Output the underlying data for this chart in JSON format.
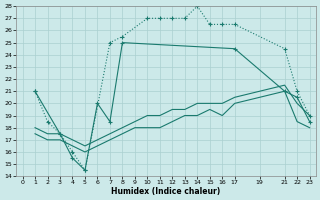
{
  "xlabel": "Humidex (Indice chaleur)",
  "bg_color": "#cce9e9",
  "grid_color": "#aad0d0",
  "line_color": "#1a7a6e",
  "ylim": [
    14,
    28
  ],
  "xlim": [
    -0.5,
    23.5
  ],
  "yticks": [
    14,
    15,
    16,
    17,
    18,
    19,
    20,
    21,
    22,
    23,
    24,
    25,
    26,
    27,
    28
  ],
  "xticks": [
    0,
    1,
    2,
    3,
    4,
    5,
    6,
    7,
    8,
    9,
    10,
    11,
    12,
    13,
    14,
    15,
    16,
    17,
    19,
    21,
    22,
    23
  ],
  "xtick_labels": [
    "0",
    "1",
    "2",
    "3",
    "4",
    "5",
    "6",
    "7",
    "8",
    "9",
    "10",
    "11",
    "12",
    "13",
    "14",
    "15",
    "16",
    "17",
    "19",
    "21",
    "22",
    "23"
  ],
  "line1_x": [
    1,
    2,
    3,
    4,
    5,
    7,
    8,
    10,
    11,
    12,
    13,
    14,
    15,
    16,
    17,
    21,
    22,
    23
  ],
  "line1_y": [
    21,
    18.5,
    17.5,
    16,
    14.5,
    25,
    25.5,
    27,
    27,
    27,
    27,
    28,
    26.5,
    26.5,
    26.5,
    24.5,
    21,
    19
  ],
  "line2_x": [
    1,
    3,
    4,
    5,
    6,
    7,
    8,
    17,
    21,
    22,
    23
  ],
  "line2_y": [
    21,
    17.5,
    15.5,
    14.5,
    20,
    18.5,
    25,
    24.5,
    21,
    20.5,
    18.5
  ],
  "line3_x": [
    1,
    2,
    3,
    5,
    6,
    7,
    8,
    9,
    10,
    11,
    12,
    13,
    14,
    15,
    16,
    17,
    19,
    21,
    22,
    23
  ],
  "line3_y": [
    18,
    17.5,
    17.5,
    16.5,
    17,
    17.5,
    18,
    18.5,
    19,
    19,
    19.5,
    19.5,
    20,
    20,
    20,
    20.5,
    21,
    21.5,
    20,
    19
  ],
  "line4_x": [
    1,
    2,
    3,
    5,
    6,
    7,
    8,
    9,
    10,
    11,
    12,
    13,
    14,
    15,
    16,
    17,
    19,
    21,
    22,
    23
  ],
  "line4_y": [
    17.5,
    17,
    17,
    16,
    16.5,
    17,
    17.5,
    18,
    18,
    18,
    18.5,
    19,
    19,
    19.5,
    19,
    20,
    20.5,
    21,
    18.5,
    18
  ]
}
